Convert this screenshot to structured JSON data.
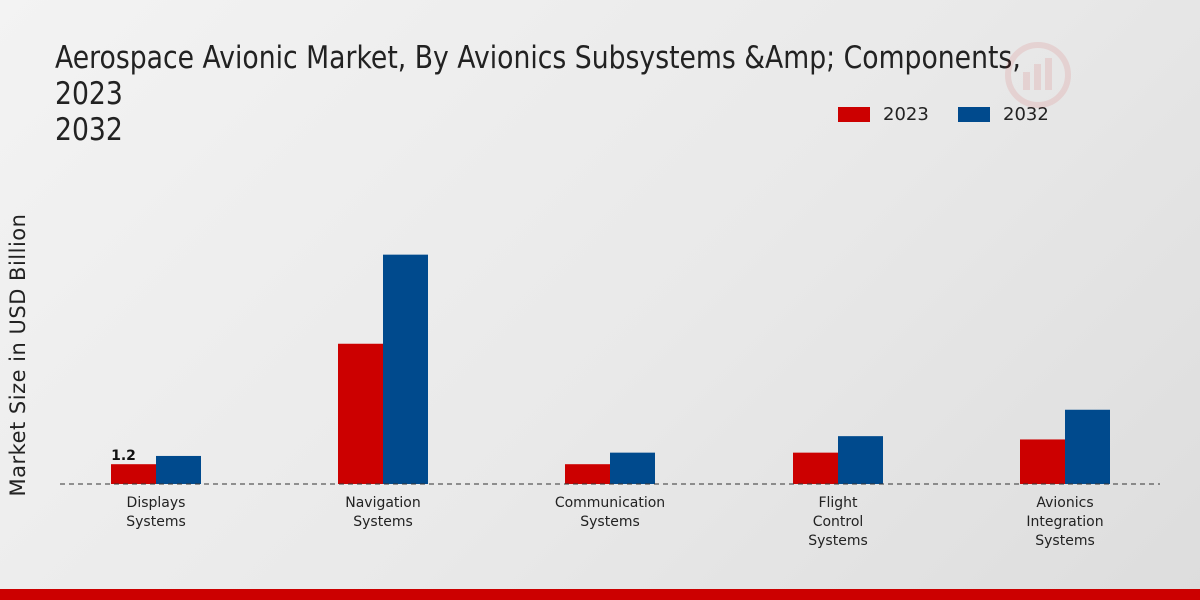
{
  "colors": {
    "series_2023": "#cc0000",
    "series_2032": "#004a8d",
    "accent": "#cc0000"
  },
  "chart_data": {
    "type": "bar",
    "title": "Aerospace Avionic Market, By Avionics Subsystems &Amp; Components, 2023\n2032",
    "ylabel": "Market Size in USD Billion",
    "xlabel": "",
    "categories": [
      "Displays\nSystems",
      "Navigation\nSystems",
      "Communication\nSystems",
      "Flight\nControl\nSystems",
      "Avionics\nIntegration\nSystems"
    ],
    "series": [
      {
        "name": "2023",
        "values": [
          1.2,
          8.5,
          1.2,
          1.9,
          2.7
        ]
      },
      {
        "name": "2032",
        "values": [
          1.7,
          13.9,
          1.9,
          2.9,
          4.5
        ]
      }
    ],
    "data_labels": [
      {
        "series": 0,
        "category": 0,
        "text": "1.2"
      }
    ],
    "ylim": [
      0,
      20
    ],
    "grid": false,
    "legend": "top-right"
  }
}
